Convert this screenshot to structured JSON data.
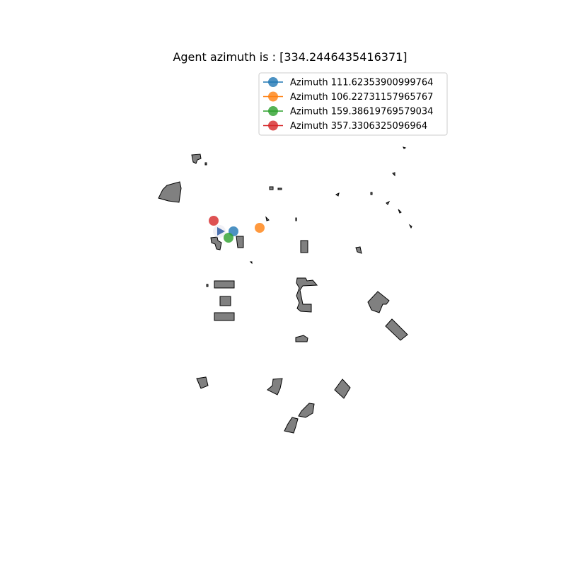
{
  "title": "Agent azimuth is : [334.2446435416371]",
  "chart_data": {
    "type": "scatter",
    "title": "Agent azimuth is : [334.2446435416371]",
    "legend_placement": "upper-right",
    "grid": false,
    "axes_visible": false,
    "agent": {
      "azimuth": 334.2446435416371,
      "marker": "triangle",
      "color": "#4c72b0"
    },
    "series": [
      {
        "name": "Azimuth 111.62353900999764",
        "color": "#1f77b4"
      },
      {
        "name": "Azimuth 106.22731157965767",
        "color": "#ff7f0e"
      },
      {
        "name": "Azimuth 159.38619769579034",
        "color": "#2ca02c"
      },
      {
        "name": "Azimuth 357.3306325096964",
        "color": "#d62728"
      }
    ]
  }
}
